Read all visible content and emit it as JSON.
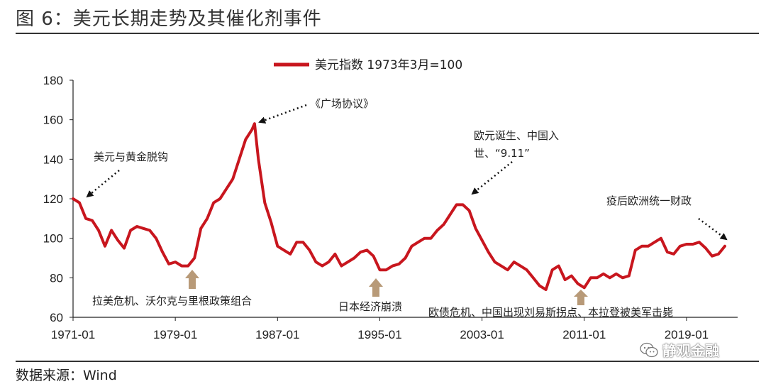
{
  "figure": {
    "title": "图 6：美元长期走势及其催化剂事件",
    "source": "数据来源：Wind",
    "watermark": "静观金融",
    "watermark_icon": "wechat-icon"
  },
  "chart_data": {
    "type": "line",
    "title": "",
    "xlabel": "",
    "ylabel": "",
    "ylim": [
      60,
      180
    ],
    "yticks": [
      60,
      80,
      100,
      120,
      140,
      160,
      180
    ],
    "xlim": [
      1971.0,
      2023.0
    ],
    "xtick_labels": [
      "1971-01",
      "1979-01",
      "1987-01",
      "1995-01",
      "2003-01",
      "2011-01",
      "2019-01"
    ],
    "legend_position": "top-center",
    "grid": false,
    "series": [
      {
        "name": "美元指数 1973年3月=100",
        "color": "#c8161e",
        "x": [
          1971.0,
          1971.5,
          1972.0,
          1972.5,
          1973.0,
          1973.5,
          1974.0,
          1974.5,
          1975.0,
          1975.5,
          1976.0,
          1976.5,
          1977.0,
          1977.5,
          1978.0,
          1978.5,
          1979.0,
          1979.5,
          1980.0,
          1980.5,
          1981.0,
          1981.5,
          1982.0,
          1982.5,
          1983.0,
          1983.5,
          1984.0,
          1984.5,
          1985.0,
          1985.2,
          1985.5,
          1986.0,
          1986.5,
          1987.0,
          1987.5,
          1988.0,
          1988.5,
          1989.0,
          1989.5,
          1990.0,
          1990.5,
          1991.0,
          1991.5,
          1992.0,
          1992.5,
          1993.0,
          1993.5,
          1994.0,
          1994.5,
          1995.0,
          1995.5,
          1996.0,
          1996.5,
          1997.0,
          1997.5,
          1998.0,
          1998.5,
          1999.0,
          1999.5,
          2000.0,
          2000.5,
          2001.0,
          2001.5,
          2002.0,
          2002.5,
          2003.0,
          2003.5,
          2004.0,
          2004.5,
          2005.0,
          2005.5,
          2006.0,
          2006.5,
          2007.0,
          2007.5,
          2008.0,
          2008.5,
          2009.0,
          2009.5,
          2010.0,
          2010.5,
          2011.0,
          2011.5,
          2012.0,
          2012.5,
          2013.0,
          2013.5,
          2014.0,
          2014.5,
          2015.0,
          2015.5,
          2016.0,
          2016.5,
          2017.0,
          2017.5,
          2018.0,
          2018.5,
          2019.0,
          2019.5,
          2020.0,
          2020.5,
          2021.0,
          2021.5,
          2022.0
        ],
        "values": [
          120,
          118,
          110,
          109,
          104,
          96,
          104,
          99,
          95,
          104,
          106,
          105,
          104,
          100,
          93,
          87,
          88,
          86,
          86,
          90,
          105,
          110,
          118,
          120,
          125,
          130,
          140,
          150,
          155,
          158,
          140,
          118,
          108,
          96,
          94,
          92,
          98,
          98,
          94,
          88,
          86,
          88,
          92,
          86,
          88,
          90,
          93,
          94,
          91,
          84,
          84,
          86,
          87,
          90,
          96,
          98,
          100,
          100,
          104,
          107,
          112,
          117,
          117,
          114,
          105,
          99,
          93,
          88,
          86,
          84,
          88,
          86,
          84,
          80,
          76,
          74,
          84,
          86,
          79,
          81,
          77,
          75,
          80,
          80,
          82,
          80,
          82,
          80,
          81,
          94,
          96,
          96,
          98,
          100,
          93,
          92,
          96,
          97,
          97,
          98,
          95,
          91,
          92,
          96
        ]
      }
    ],
    "annotations": [
      {
        "text": "美元与黄金脱钩"
      },
      {
        "text": "《广场协议》"
      },
      {
        "text": "欧元诞生、中国入"
      },
      {
        "text": "世、“9.11”"
      },
      {
        "text": "疫后欧洲统一财政"
      },
      {
        "text": "拉美危机、沃尔克与里根政策组合"
      },
      {
        "text": "日本经济崩溃"
      },
      {
        "text": "欧债危机、中国出现刘易斯拐点、本拉登被美军击毙"
      }
    ]
  }
}
